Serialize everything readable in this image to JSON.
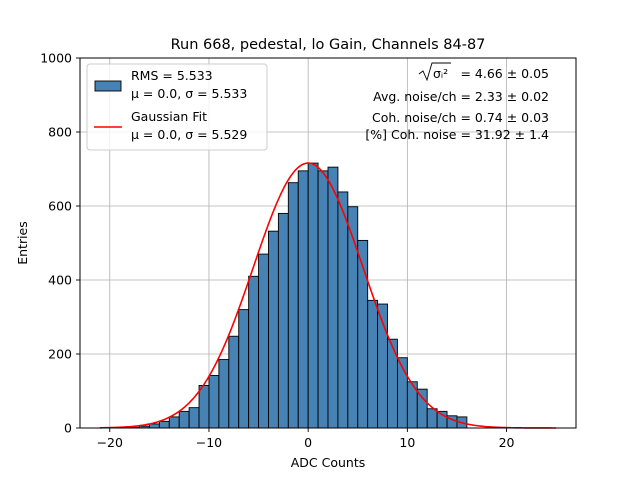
{
  "chart_data": {
    "type": "bar",
    "title": "Run 668, pedestal, lo Gain, Channels 84-87",
    "xlabel": "ADC Counts",
    "ylabel": "Entries",
    "xlim": [
      -23,
      27
    ],
    "ylim": [
      0,
      1000
    ],
    "xticks": [
      -20,
      -10,
      0,
      10,
      20
    ],
    "yticks": [
      0,
      200,
      400,
      600,
      800,
      1000
    ],
    "grid": true,
    "legend_position": "top-left",
    "colors": {
      "hist": "#4682b4",
      "fit": "#ff0000"
    },
    "histogram": {
      "name": "RMS = 5.533",
      "stats": "μ = 0.0, σ = 5.533",
      "bins": [
        {
          "x": -21,
          "y": 0
        },
        {
          "x": -20,
          "y": 0
        },
        {
          "x": -19,
          "y": 1
        },
        {
          "x": -18,
          "y": 2
        },
        {
          "x": -17,
          "y": 5
        },
        {
          "x": -16,
          "y": 11
        },
        {
          "x": -15,
          "y": 18
        },
        {
          "x": -14,
          "y": 30
        },
        {
          "x": -13,
          "y": 45
        },
        {
          "x": -12,
          "y": 55
        },
        {
          "x": -11,
          "y": 115
        },
        {
          "x": -10,
          "y": 142
        },
        {
          "x": -9,
          "y": 185
        },
        {
          "x": -8,
          "y": 248
        },
        {
          "x": -7,
          "y": 320
        },
        {
          "x": -6,
          "y": 410
        },
        {
          "x": -5,
          "y": 470
        },
        {
          "x": -4,
          "y": 532
        },
        {
          "x": -3,
          "y": 580
        },
        {
          "x": -2,
          "y": 663
        },
        {
          "x": -1,
          "y": 695
        },
        {
          "x": 0,
          "y": 716
        },
        {
          "x": 1,
          "y": 695
        },
        {
          "x": 2,
          "y": 705
        },
        {
          "x": 3,
          "y": 638
        },
        {
          "x": 4,
          "y": 598
        },
        {
          "x": 5,
          "y": 507
        },
        {
          "x": 6,
          "y": 345
        },
        {
          "x": 7,
          "y": 335
        },
        {
          "x": 8,
          "y": 240
        },
        {
          "x": 9,
          "y": 190
        },
        {
          "x": 10,
          "y": 125
        },
        {
          "x": 11,
          "y": 105
        },
        {
          "x": 12,
          "y": 52
        },
        {
          "x": 13,
          "y": 45
        },
        {
          "x": 14,
          "y": 33
        },
        {
          "x": 15,
          "y": 30
        },
        {
          "x": 16,
          "y": 0
        }
      ],
      "bin_width": 1
    },
    "fit": {
      "name": "Gaussian Fit",
      "stats": "μ = 0.0, σ = 5.529",
      "mu": 0.0,
      "sigma": 5.529,
      "amplitude": 716,
      "x_range": [
        -21,
        25
      ]
    },
    "annotations": [
      {
        "prefix": "",
        "sqrt_label": "σᵢ²",
        "suffix": " = 4.66 ± 0.05"
      },
      {
        "prefix": "Avg. noise/ch = 2.33 ± 0.02",
        "sqrt_label": "",
        "suffix": ""
      },
      {
        "prefix": "Coh. noise/ch = 0.74 ± 0.03",
        "sqrt_label": "",
        "suffix": ""
      },
      {
        "prefix": "[%] Coh. noise = 31.92 ± 1.4",
        "sqrt_label": "",
        "suffix": ""
      }
    ]
  }
}
